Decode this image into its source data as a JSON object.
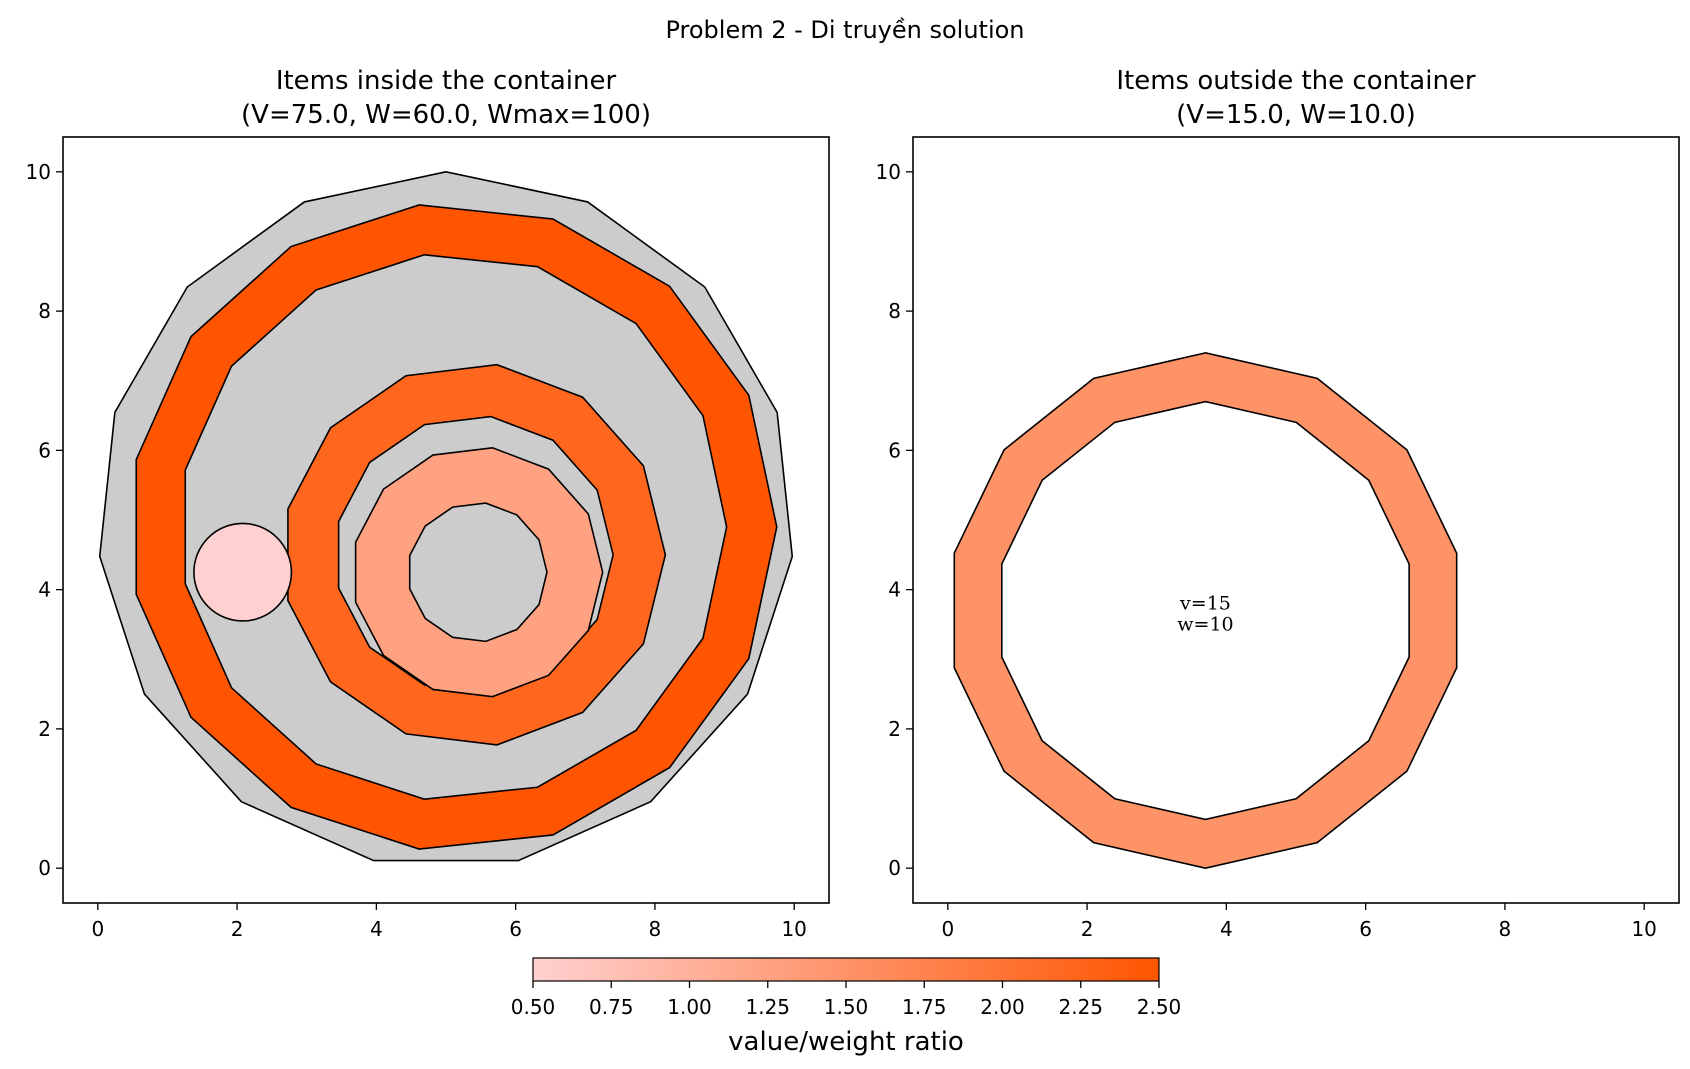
{
  "figure": {
    "suptitle": "Problem 2 - Di truyền solution"
  },
  "chart_data": [
    {
      "type": "polygon-packing",
      "title_line1": "Items inside the container",
      "title_line2": "(V=75.0, W=60.0, Wmax=100)",
      "xlim": [
        -0.5,
        10.5
      ],
      "ylim": [
        -0.5,
        10.5
      ],
      "xticks": [
        0,
        2,
        4,
        6,
        8,
        10
      ],
      "yticks": [
        0,
        2,
        4,
        6,
        8,
        10
      ],
      "grid": false,
      "container": {
        "shape": "polygon",
        "vertices": 15,
        "center": [
          5.0,
          5.0
        ],
        "radius": 5.0,
        "start_angle_deg": 90,
        "color": "#cccccc"
      },
      "items": [
        {
          "shape": "ring",
          "vertices": 15,
          "center": [
            5.1,
            4.9
          ],
          "outer_radius": 4.65,
          "inner_radius": 3.93,
          "start_angle_deg": 0,
          "ratio": 2.5
        },
        {
          "shape": "ring",
          "vertices": 13,
          "center": [
            5.4,
            4.5
          ],
          "outer_radius": 2.75,
          "inner_radius": 2.0,
          "start_angle_deg": 0,
          "ratio": 2.2
        },
        {
          "shape": "ring",
          "vertices": 13,
          "center": [
            5.45,
            4.25
          ],
          "outer_radius": 1.8,
          "inner_radius": 1.0,
          "start_angle_deg": 0,
          "ratio": 1.25
        },
        {
          "shape": "circle",
          "center": [
            2.08,
            4.25
          ],
          "radius": 0.7,
          "ratio": 0.5
        }
      ]
    },
    {
      "type": "polygon-packing",
      "title_line1": "Items outside the container",
      "title_line2": "(V=15.0, W=10.0)",
      "xlim": [
        -0.5,
        10.5
      ],
      "ylim": [
        -0.5,
        10.5
      ],
      "xticks": [
        0,
        2,
        4,
        6,
        8,
        10
      ],
      "yticks": [
        0,
        2,
        4,
        6,
        8,
        10
      ],
      "grid": false,
      "items": [
        {
          "shape": "ring",
          "vertices": 14,
          "center": [
            3.7,
            3.7
          ],
          "outer_radius": 3.7,
          "inner_radius": 3.0,
          "start_angle_deg": 90,
          "ratio": 1.5,
          "label_line1": "v=15",
          "label_line2": "w=10"
        }
      ]
    }
  ],
  "colorbar": {
    "label": "value/weight ratio",
    "min": 0.5,
    "max": 2.5,
    "ticks": [
      "0.50",
      "0.75",
      "1.00",
      "1.25",
      "1.50",
      "1.75",
      "2.00",
      "2.25",
      "2.50"
    ],
    "color_low": "#ffd0d0",
    "color_high": "#ff5500"
  }
}
